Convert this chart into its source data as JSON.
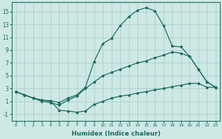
{
  "xlabel": "Humidex (Indice chaleur)",
  "background_color": "#cde8e5",
  "grid_color": "#aacfcb",
  "line_color": "#1a6b5a",
  "xlim": [
    -0.5,
    23.5
  ],
  "ylim": [
    -2.0,
    16.5
  ],
  "xticks": [
    0,
    1,
    2,
    3,
    4,
    5,
    6,
    7,
    8,
    9,
    10,
    11,
    12,
    13,
    14,
    15,
    16,
    17,
    18,
    19,
    20,
    21,
    22,
    23
  ],
  "yticks": [
    -1,
    1,
    3,
    5,
    7,
    9,
    11,
    13,
    15
  ],
  "line1_x": [
    0,
    1,
    2,
    3,
    4,
    5,
    6,
    7,
    8,
    9,
    10,
    11,
    12,
    13,
    14,
    15,
    16,
    17,
    18,
    19,
    20,
    21,
    22,
    23
  ],
  "line1_y": [
    2.5,
    2.0,
    1.5,
    1.2,
    1.1,
    0.8,
    1.5,
    2.0,
    3.2,
    7.2,
    10.0,
    10.8,
    12.8,
    14.2,
    15.2,
    15.6,
    15.1,
    12.8,
    9.6,
    9.5,
    8.0,
    6.0,
    4.0,
    3.2
  ],
  "line2_x": [
    0,
    1,
    2,
    3,
    4,
    5,
    6,
    7,
    8,
    9,
    10,
    11,
    12,
    13,
    14,
    15,
    16,
    17,
    18,
    19,
    20,
    21,
    22,
    23
  ],
  "line2_y": [
    2.5,
    2.0,
    1.5,
    1.0,
    0.8,
    0.4,
    1.2,
    1.8,
    3.0,
    4.0,
    5.0,
    5.5,
    6.0,
    6.5,
    7.0,
    7.3,
    7.8,
    8.2,
    8.7,
    8.5,
    8.0,
    6.0,
    4.0,
    3.2
  ],
  "line3_x": [
    0,
    1,
    2,
    3,
    4,
    5,
    6,
    7,
    8,
    9,
    10,
    11,
    12,
    13,
    14,
    15,
    16,
    17,
    18,
    19,
    20,
    21,
    22,
    23
  ],
  "line3_y": [
    2.5,
    2.0,
    1.5,
    1.2,
    1.0,
    -0.4,
    -0.5,
    -0.7,
    -0.5,
    0.5,
    1.0,
    1.5,
    1.8,
    2.0,
    2.3,
    2.5,
    2.8,
    3.0,
    3.3,
    3.5,
    3.8,
    3.8,
    3.2,
    3.2
  ]
}
